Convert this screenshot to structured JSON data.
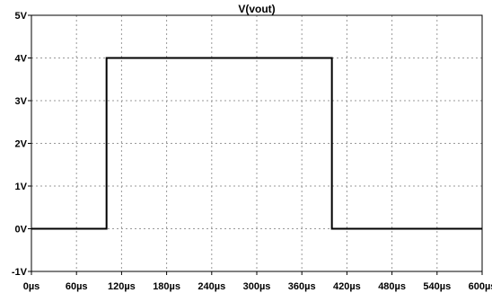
{
  "chart_data": {
    "type": "line",
    "title": "V(vout)",
    "xlabel": "",
    "ylabel": "",
    "x_unit": "µs",
    "y_unit": "V",
    "xlim": [
      0,
      600
    ],
    "ylim": [
      -1,
      5
    ],
    "x_ticks": [
      0,
      60,
      120,
      180,
      240,
      300,
      360,
      420,
      480,
      540,
      600
    ],
    "x_tick_labels": [
      "0µs",
      "60µs",
      "120µs",
      "180µs",
      "240µs",
      "300µs",
      "360µs",
      "420µs",
      "480µs",
      "540µs",
      "600µs"
    ],
    "y_ticks": [
      -1,
      0,
      1,
      2,
      3,
      4,
      5
    ],
    "y_tick_labels": [
      "-1V",
      "0V",
      "1V",
      "2V",
      "3V",
      "4V",
      "5V"
    ],
    "grid": true,
    "series": [
      {
        "name": "V(vout)",
        "color": "#000000",
        "x": [
          0,
          100,
          100,
          400,
          400,
          600
        ],
        "y": [
          0,
          0,
          4,
          4,
          0,
          0
        ]
      }
    ]
  }
}
